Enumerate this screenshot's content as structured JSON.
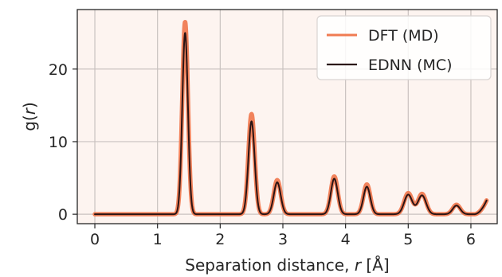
{
  "chart_data": {
    "type": "line",
    "title": "",
    "xlabel": "Separation distance, r [Å]",
    "xlabel_parts": {
      "prefix": "Separation distance, ",
      "var": "r",
      "suffix": " [Å]"
    },
    "ylabel": "g(r)",
    "ylabel_parts": {
      "prefix": "g(",
      "var": "r",
      "suffix": ")"
    },
    "xlim": [
      -0.28,
      6.42
    ],
    "ylim": [
      -1.3,
      28.2
    ],
    "xticks": [
      0,
      1,
      2,
      3,
      4,
      5,
      6
    ],
    "xtick_labels": [
      "0",
      "1",
      "2",
      "3",
      "4",
      "5",
      "6"
    ],
    "yticks": [
      0,
      10,
      20
    ],
    "ytick_labels": [
      "0",
      "10",
      "20"
    ],
    "grid": true,
    "legend_position": "top-right",
    "background_color": "#fdf4f0",
    "series": [
      {
        "name": "DFT (MD)",
        "color": "#f07b52",
        "peaks": [
          {
            "center": 1.44,
            "height": 26.5,
            "width": 0.045
          },
          {
            "center": 2.5,
            "height": 13.8,
            "width": 0.05
          },
          {
            "center": 2.91,
            "height": 4.7,
            "width": 0.055
          },
          {
            "center": 3.82,
            "height": 5.2,
            "width": 0.055
          },
          {
            "center": 4.34,
            "height": 4.1,
            "width": 0.055
          },
          {
            "center": 5.0,
            "height": 2.9,
            "width": 0.065
          },
          {
            "center": 5.22,
            "height": 2.8,
            "width": 0.065
          },
          {
            "center": 5.77,
            "height": 1.3,
            "width": 0.06
          }
        ],
        "tail": {
          "start": 6.05,
          "end": 6.25,
          "end_value": 1.9
        }
      },
      {
        "name": "EDNN (MC)",
        "color": "#2b1414",
        "peaks": [
          {
            "center": 1.44,
            "height": 25.0,
            "width": 0.045
          },
          {
            "center": 2.5,
            "height": 12.8,
            "width": 0.05
          },
          {
            "center": 2.91,
            "height": 4.4,
            "width": 0.055
          },
          {
            "center": 3.82,
            "height": 4.9,
            "width": 0.055
          },
          {
            "center": 4.34,
            "height": 3.8,
            "width": 0.055
          },
          {
            "center": 5.0,
            "height": 2.7,
            "width": 0.065
          },
          {
            "center": 5.22,
            "height": 2.6,
            "width": 0.065
          },
          {
            "center": 5.77,
            "height": 1.2,
            "width": 0.06
          }
        ],
        "tail": {
          "start": 6.05,
          "end": 6.25,
          "end_value": 1.9
        }
      }
    ]
  }
}
